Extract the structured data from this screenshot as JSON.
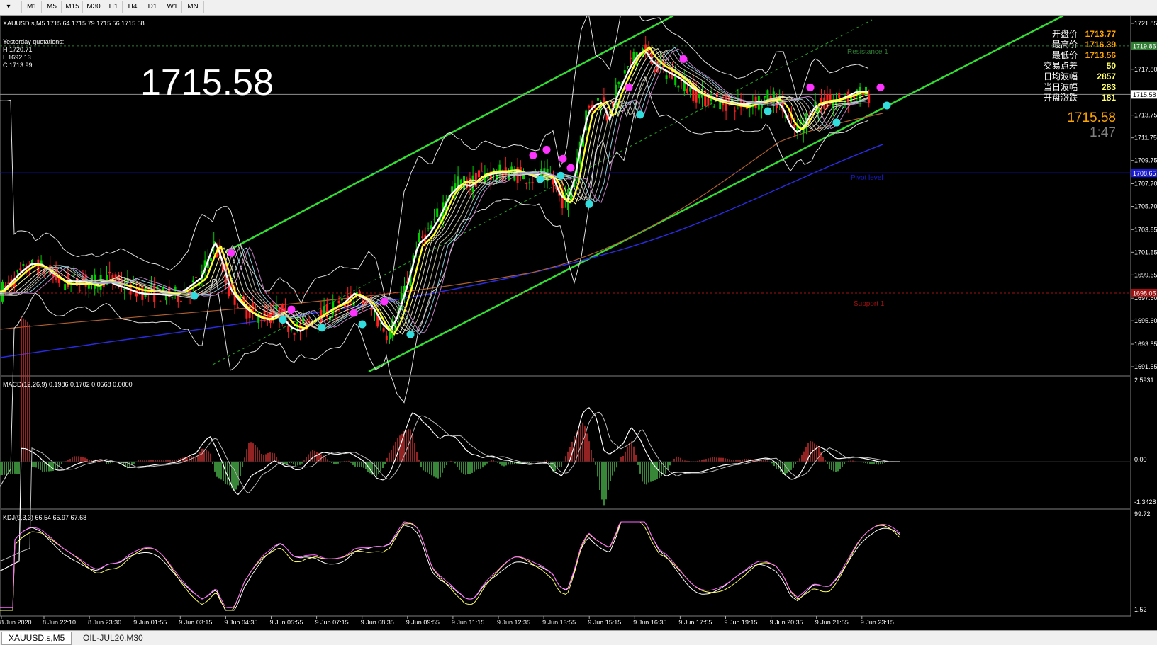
{
  "toolbar": {
    "menu_glyph": "▾",
    "timeframes": [
      "M1",
      "M5",
      "M15",
      "M30",
      "H1",
      "H4",
      "D1",
      "W1",
      "MN"
    ]
  },
  "main_chart": {
    "header": "XAUUSD.s,M5  1715.64 1715.79 1715.56 1715.58",
    "yesterday": {
      "title": "Yesterday quotations:",
      "high": "H 1720.71",
      "low": "L 1692.13",
      "close": "C 1713.99"
    },
    "big_price": "1715.58",
    "line_labels": {
      "resistance": "Resistance 1",
      "pivot": "Pivot level",
      "support": "Support 1"
    },
    "price_scale": [
      "1721.85",
      "1719.86",
      "1717.80",
      "1715.58",
      "1713.75",
      "1711.75",
      "1709.75",
      "1707.70",
      "1705.70",
      "1703.65",
      "1701.65",
      "1699.65",
      "1697.60",
      "1695.60",
      "1693.55",
      "1691.55"
    ],
    "current_price_tag": "1715.58",
    "resistance_tag": "1719.86",
    "pivot_tag": "1708.65",
    "support_tag": "1698.05",
    "stats": [
      {
        "label": "开盘价",
        "value": "1713.77",
        "color": "#ffa500"
      },
      {
        "label": "最高价",
        "value": "1716.39",
        "color": "#ffa500"
      },
      {
        "label": "最低价",
        "value": "1713.56",
        "color": "#ffa500"
      },
      {
        "label": "交易点差",
        "value": "50",
        "color": "#ffff66"
      },
      {
        "label": "日均波幅",
        "value": "2857",
        "color": "#ffff66"
      },
      {
        "label": "当日波幅",
        "value": "283",
        "color": "#ffff66"
      },
      {
        "label": "开盘涨跌",
        "value": "181",
        "color": "#ffff66"
      }
    ],
    "right_price": "1715.58",
    "timer": "1:47"
  },
  "macd": {
    "header": "MACD(12,26,9) 0.1986 0.1702 0.0568 0.0000",
    "scale": [
      "2.5931",
      "0.00",
      "-1.3428"
    ]
  },
  "kdj": {
    "header": "KDJ(9,3,3) 66.54 65.97 67.68",
    "scale": [
      "99.72",
      "1.52"
    ]
  },
  "time_axis": [
    "8 Jun 2020",
    "8 Jun 22:10",
    "8 Jun 23:30",
    "9 Jun 01:55",
    "9 Jun 03:15",
    "9 Jun 04:35",
    "9 Jun 05:55",
    "9 Jun 07:15",
    "9 Jun 08:35",
    "9 Jun 09:55",
    "9 Jun 11:15",
    "9 Jun 12:35",
    "9 Jun 13:55",
    "9 Jun 15:15",
    "9 Jun 16:35",
    "9 Jun 17:55",
    "9 Jun 19:15",
    "9 Jun 20:35",
    "9 Jun 21:55",
    "9 Jun 23:15"
  ],
  "tabs": [
    {
      "label": "XAUUSD.s,M5",
      "active": true
    },
    {
      "label": "OIL-JUL20,M30",
      "active": false
    }
  ],
  "colors": {
    "background": "#000000",
    "bull_candle": "#00cc00",
    "bear_candle": "#ff2020",
    "channel": "#33dd33",
    "pivot": "#1010c0",
    "resistance": "#2e7d32",
    "support": "#a01010",
    "ma_fast": "#ffffff",
    "ma_yellow": "#ffff33",
    "signal_up": "#ff33ff",
    "signal_down": "#33dddd"
  },
  "price_series_points": [
    [
      0,
      1698.0
    ],
    [
      15,
      1698.8
    ],
    [
      30,
      1699.7
    ],
    [
      45,
      1700.4
    ],
    [
      60,
      1700.3
    ],
    [
      75,
      1699.6
    ],
    [
      90,
      1699.0
    ],
    [
      105,
      1699.0
    ],
    [
      120,
      1699.1
    ],
    [
      135,
      1698.9
    ],
    [
      150,
      1699.4
    ],
    [
      165,
      1699.0
    ],
    [
      180,
      1698.7
    ],
    [
      195,
      1698.3
    ],
    [
      210,
      1698.1
    ],
    [
      225,
      1698.0
    ],
    [
      240,
      1697.8
    ],
    [
      255,
      1697.9
    ],
    [
      270,
      1698.5
    ],
    [
      285,
      1699.2
    ],
    [
      300,
      1701.8
    ],
    [
      305,
      1702.3
    ],
    [
      315,
      1700.4
    ],
    [
      325,
      1698.3
    ],
    [
      335,
      1697.5
    ],
    [
      350,
      1696.6
    ],
    [
      365,
      1696.1
    ],
    [
      380,
      1695.9
    ],
    [
      395,
      1696.5
    ],
    [
      410,
      1695.3
    ],
    [
      425,
      1694.9
    ],
    [
      440,
      1695.6
    ],
    [
      455,
      1696.1
    ],
    [
      470,
      1696.6
    ],
    [
      485,
      1697.0
    ],
    [
      500,
      1697.8
    ],
    [
      510,
      1697.5
    ],
    [
      520,
      1697.1
    ],
    [
      530,
      1696.2
    ],
    [
      540,
      1695.1
    ],
    [
      550,
      1694.5
    ],
    [
      560,
      1695.7
    ],
    [
      575,
      1698.7
    ],
    [
      590,
      1702.4
    ],
    [
      605,
      1703.3
    ],
    [
      620,
      1704.9
    ],
    [
      635,
      1706.9
    ],
    [
      650,
      1707.9
    ],
    [
      665,
      1707.7
    ],
    [
      680,
      1708.4
    ],
    [
      695,
      1708.6
    ],
    [
      710,
      1708.6
    ],
    [
      725,
      1708.7
    ],
    [
      740,
      1708.4
    ],
    [
      755,
      1708.2
    ],
    [
      765,
      1708.4
    ],
    [
      780,
      1708.2
    ],
    [
      790,
      1706.6
    ],
    [
      800,
      1706.1
    ],
    [
      810,
      1707.9
    ],
    [
      820,
      1711.3
    ],
    [
      830,
      1714.1
    ],
    [
      840,
      1714.8
    ],
    [
      850,
      1715.1
    ],
    [
      860,
      1713.6
    ],
    [
      870,
      1715.6
    ],
    [
      880,
      1717.0
    ],
    [
      890,
      1718.3
    ],
    [
      900,
      1719.2
    ],
    [
      910,
      1719.6
    ],
    [
      920,
      1718.6
    ],
    [
      930,
      1718.0
    ],
    [
      945,
      1717.4
    ],
    [
      960,
      1716.8
    ],
    [
      975,
      1716.0
    ],
    [
      990,
      1715.4
    ],
    [
      1005,
      1715.1
    ],
    [
      1020,
      1714.9
    ],
    [
      1035,
      1714.8
    ],
    [
      1050,
      1714.7
    ],
    [
      1065,
      1715.0
    ],
    [
      1080,
      1715.2
    ],
    [
      1095,
      1715.3
    ],
    [
      1105,
      1714.6
    ],
    [
      1115,
      1713.1
    ],
    [
      1125,
      1712.4
    ],
    [
      1135,
      1713.0
    ],
    [
      1150,
      1714.6
    ],
    [
      1165,
      1714.8
    ],
    [
      1180,
      1714.9
    ],
    [
      1195,
      1715.2
    ],
    [
      1210,
      1715.6
    ],
    [
      1218,
      1715.58
    ]
  ]
}
